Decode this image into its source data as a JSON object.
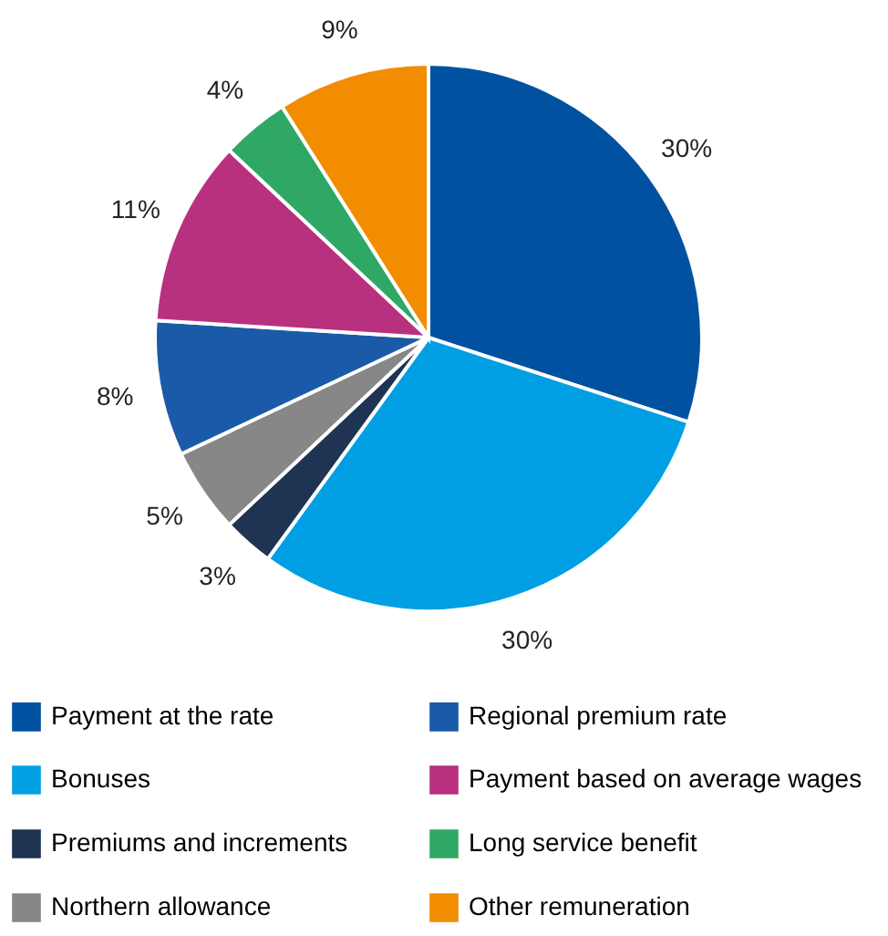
{
  "chart_data": {
    "type": "pie",
    "categories": [
      "Payment at the rate",
      "Bonuses",
      "Premiums and increments",
      "Northern allowance",
      "Regional premium rate",
      "Payment based on average wages",
      "Long service benefit",
      "Other remuneration"
    ],
    "values": [
      30,
      30,
      3,
      5,
      8,
      11,
      4,
      9
    ],
    "value_labels": [
      "30%",
      "30%",
      "3%",
      "5%",
      "8%",
      "11%",
      "4%",
      "9%"
    ],
    "colors": [
      "#0052a0",
      "#009fe3",
      "#1f3453",
      "#878787",
      "#1b5aa8",
      "#b8317f",
      "#2fa866",
      "#f28c00"
    ],
    "legend": "bottom"
  }
}
